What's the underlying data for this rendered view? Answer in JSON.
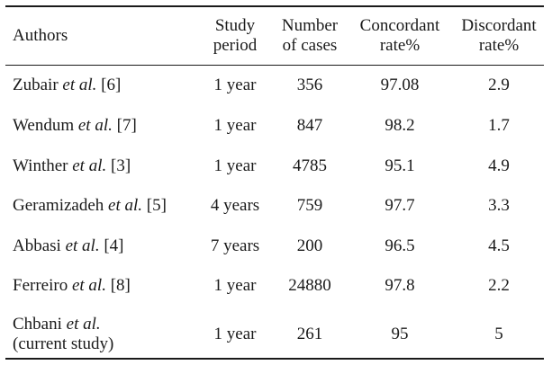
{
  "table": {
    "headers": {
      "authors": [
        "Authors"
      ],
      "study_period": [
        "Study",
        "period"
      ],
      "number_of_cases": [
        "Number",
        "of cases"
      ],
      "concordant_rate": [
        "Concordant",
        "rate%"
      ],
      "discordant_rate": [
        "Discordant",
        "rate%"
      ]
    },
    "rows": [
      {
        "name": "Zubair",
        "etal": "et al.",
        "ref": "[6]",
        "period": "1 year",
        "cases": "356",
        "concordant": "97.08",
        "discordant": "2.9"
      },
      {
        "name": "Wendum",
        "etal": "et al.",
        "ref": "[7]",
        "period": "1 year",
        "cases": "847",
        "concordant": "98.2",
        "discordant": "1.7"
      },
      {
        "name": "Winther",
        "etal": "et al.",
        "ref": "[3]",
        "period": "1 year",
        "cases": "4785",
        "concordant": "95.1",
        "discordant": "4.9"
      },
      {
        "name": "Geramizadeh",
        "etal": "et al.",
        "ref": "[5]",
        "period": "4 years",
        "cases": "759",
        "concordant": "97.7",
        "discordant": "3.3"
      },
      {
        "name": "Abbasi",
        "etal": "et al.",
        "ref": "[4]",
        "period": "7 years",
        "cases": "200",
        "concordant": "96.5",
        "discordant": "4.5"
      },
      {
        "name": "Ferreiro",
        "etal": "et al.",
        "ref": "[8]",
        "period": "1 year",
        "cases": "24880",
        "concordant": "97.8",
        "discordant": "2.2"
      },
      {
        "name": "Chbani",
        "etal": "et al.",
        "ref": "(current study)",
        "period": "1 year",
        "cases": "261",
        "concordant": "95",
        "discordant": "5"
      }
    ]
  }
}
